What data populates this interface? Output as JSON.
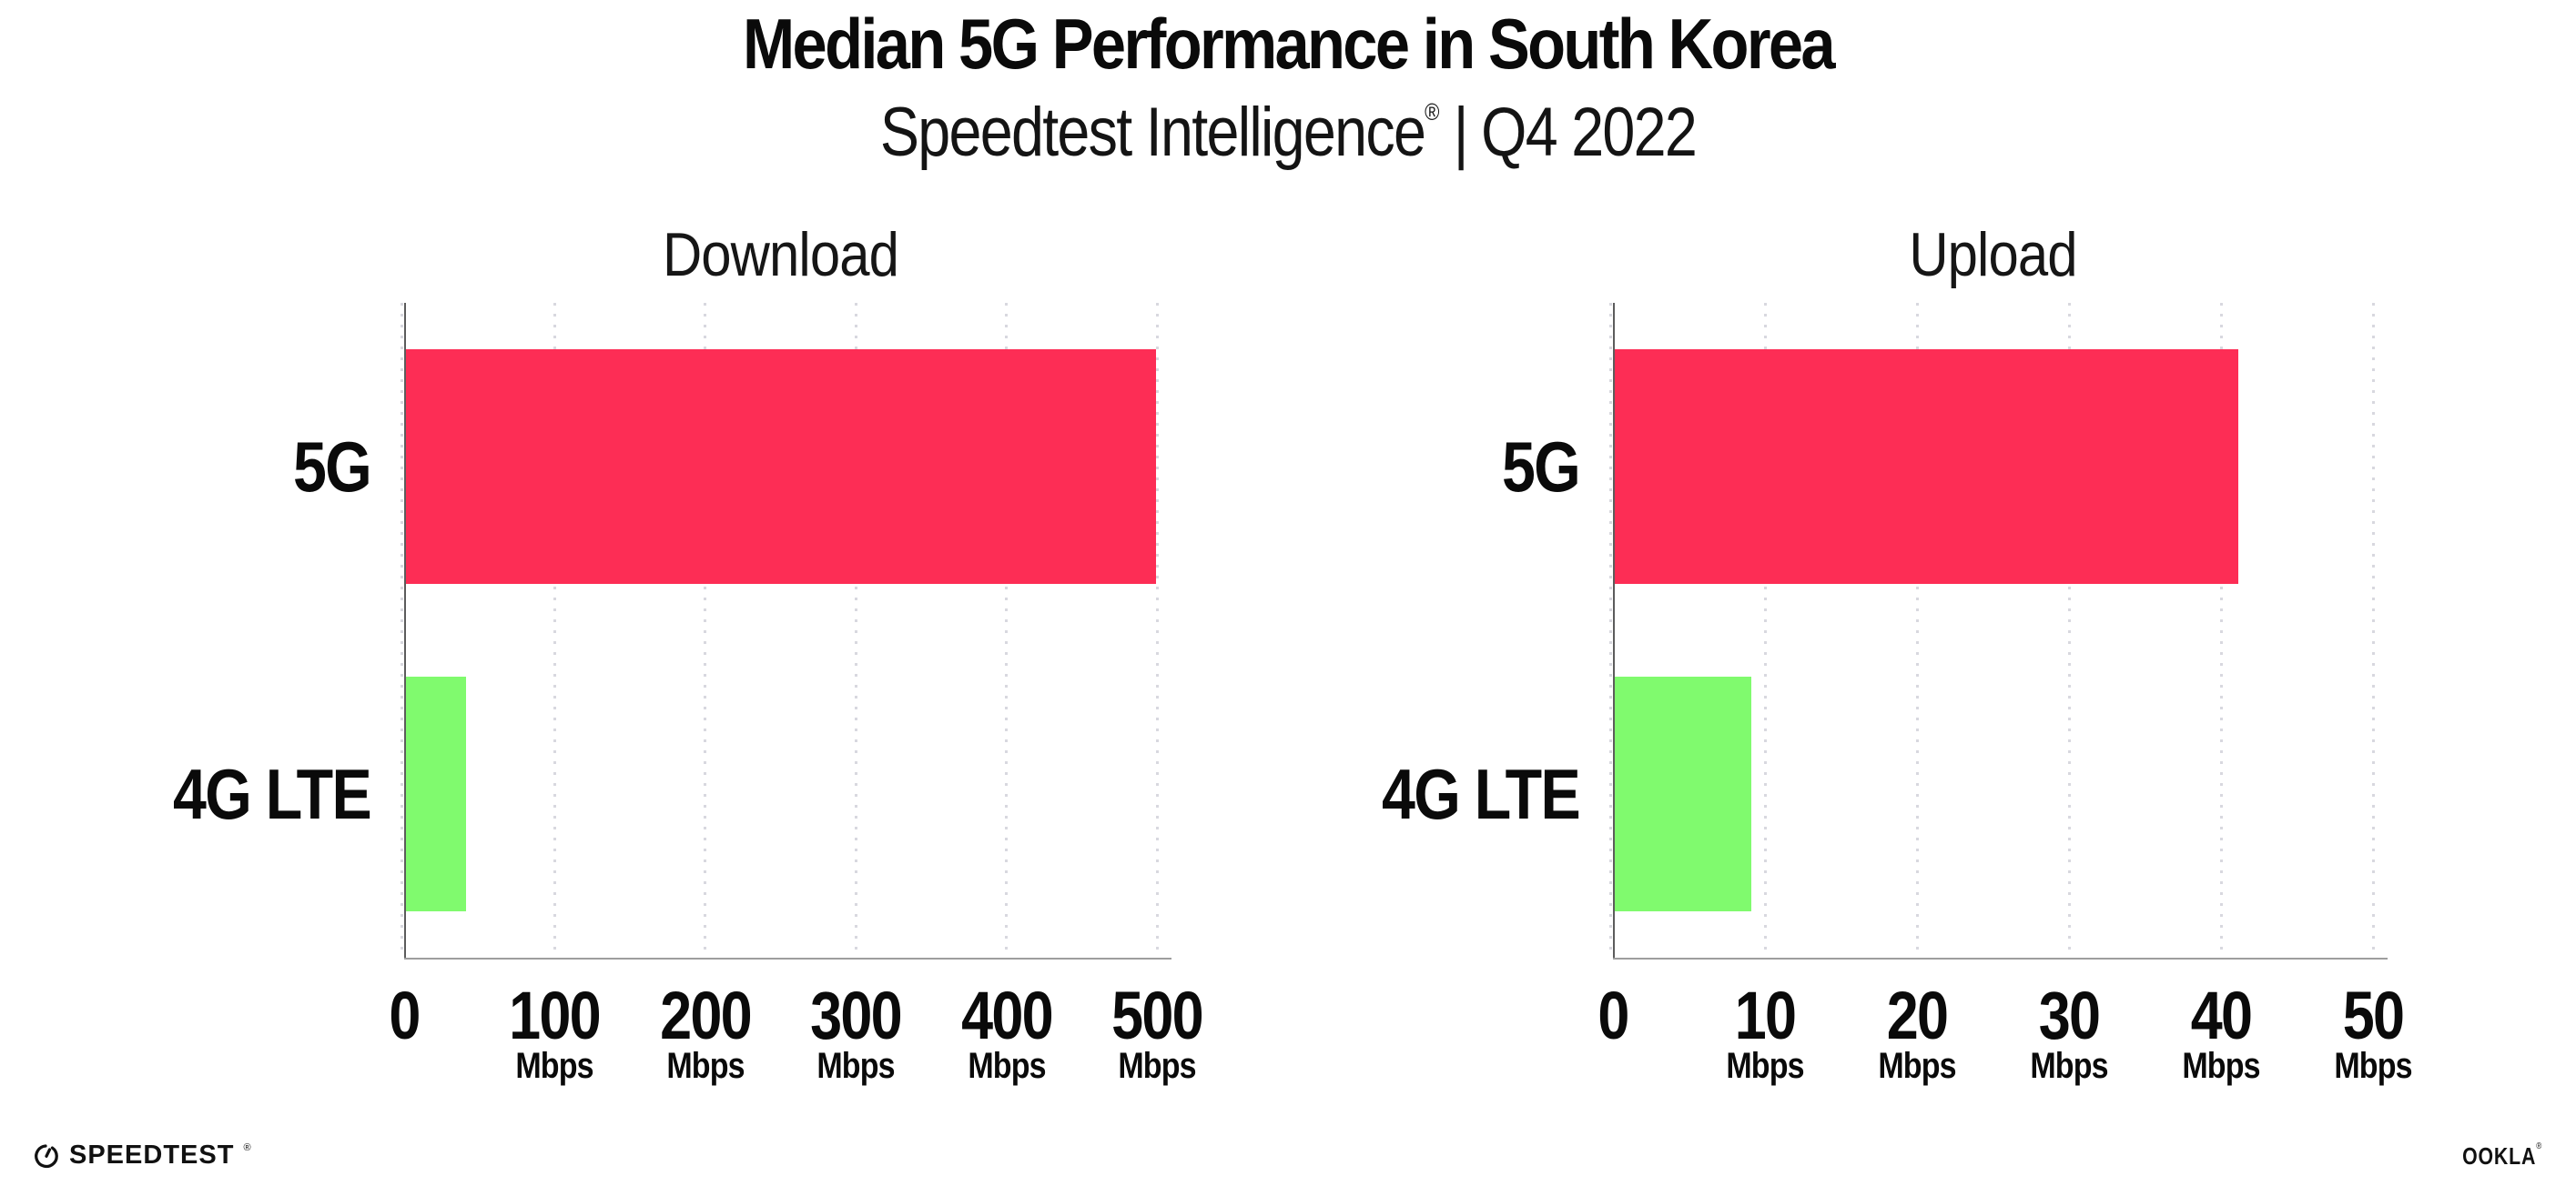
{
  "header": {
    "title": "Median 5G Performance in South Korea",
    "subtitle_brand": "Speedtest Intelligence",
    "subtitle_reg": "®",
    "subtitle_divider": "|",
    "subtitle_period": "Q4 2022"
  },
  "colors": {
    "bar_5g": "#FD2D55",
    "bar_4g": "#80FA6E",
    "y_axis_line": "#5c5c5c",
    "baseline": "#9e9e9e",
    "gridline_dots": "#d8d8df",
    "text": "#0a0a0a"
  },
  "chart_data": [
    {
      "type": "bar",
      "orientation": "horizontal",
      "title": "Download",
      "categories": [
        "5G",
        "4G LTE"
      ],
      "values": [
        498,
        40
      ],
      "unit": "Mbps",
      "xlim": [
        0,
        500
      ],
      "xticks": [
        0,
        100,
        200,
        300,
        400,
        500
      ],
      "bar_colors": [
        "#FD2D55",
        "#80FA6E"
      ],
      "grid": "vertical-dotted",
      "legend": "none"
    },
    {
      "type": "bar",
      "orientation": "horizontal",
      "title": "Upload",
      "categories": [
        "5G",
        "4G LTE"
      ],
      "values": [
        41,
        9
      ],
      "unit": "Mbps",
      "xlim": [
        0,
        50
      ],
      "xticks": [
        0,
        10,
        20,
        30,
        40,
        50
      ],
      "bar_colors": [
        "#FD2D55",
        "#80FA6E"
      ],
      "grid": "vertical-dotted",
      "legend": "none"
    }
  ],
  "footer": {
    "speedtest_text": "SPEEDTEST",
    "speedtest_reg": "®",
    "ookla_text": "OOKLA",
    "ookla_reg": "®"
  }
}
